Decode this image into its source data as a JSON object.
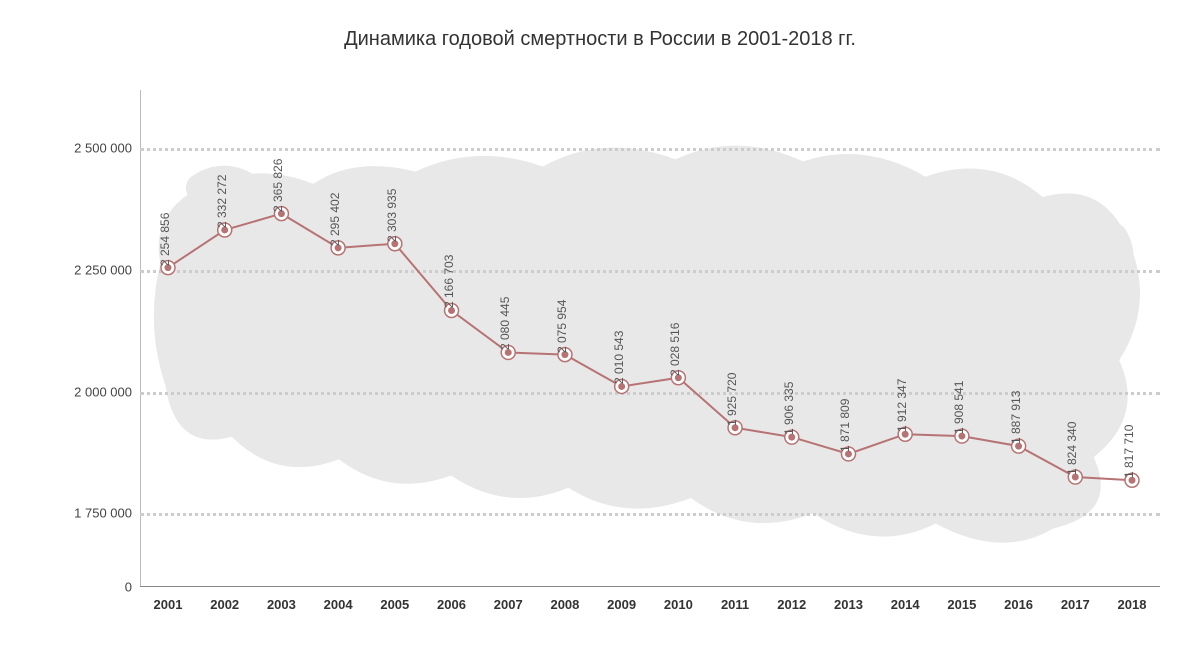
{
  "chart": {
    "type": "line",
    "title": "Динамика годовой смертности в России в 2001-2018 гг.",
    "title_fontsize": 20,
    "title_color": "#333333",
    "background_color": "#ffffff",
    "map_bg_color": "#e8e8e8",
    "line_color": "#b77373",
    "line_width": 2,
    "marker_outer_radius": 7,
    "marker_inner_radius": 3.5,
    "marker_fill": "#ffffff",
    "marker_stroke": "#b77373",
    "marker_center_fill": "#b77373",
    "grid_color": "#cccccc",
    "axis_color": "#888888",
    "label_color": "#555555",
    "xlabel_color": "#333333",
    "ylabel_color": "#444444",
    "label_fontsize": 12,
    "axis_fontsize": 13,
    "ylim": [
      0,
      2620000
    ],
    "y_axis_break": true,
    "y_visible_min": 1680000,
    "y_visible_max": 2620000,
    "yticks": [
      {
        "value": 0,
        "label": "0"
      },
      {
        "value": 1750000,
        "label": "1 750 000"
      },
      {
        "value": 2000000,
        "label": "2 000 000"
      },
      {
        "value": 2250000,
        "label": "2 250 000"
      },
      {
        "value": 2500000,
        "label": "2 500 000"
      }
    ],
    "x_categories": [
      "2001",
      "2002",
      "2003",
      "2004",
      "2005",
      "2006",
      "2007",
      "2008",
      "2009",
      "2010",
      "2011",
      "2012",
      "2013",
      "2014",
      "2015",
      "2016",
      "2017",
      "2018"
    ],
    "values": [
      2254856,
      2332272,
      2365826,
      2295402,
      2303935,
      2166703,
      2080445,
      2075954,
      2010543,
      2028516,
      1925720,
      1906335,
      1871809,
      1912347,
      1908541,
      1887913,
      1824340,
      1817710
    ],
    "value_labels": [
      "2 254 856",
      "2 332 272",
      "2 365 826",
      "2 295 402",
      "2 303 935",
      "2 166 703",
      "2 080 445",
      "2 075 954",
      "2 010 543",
      "2 028 516",
      "1 925 720",
      "1 906 335",
      "1 871 809",
      "1 912 347",
      "1 908 541",
      "1 887 913",
      "1 824 340",
      "1 817 710"
    ]
  }
}
